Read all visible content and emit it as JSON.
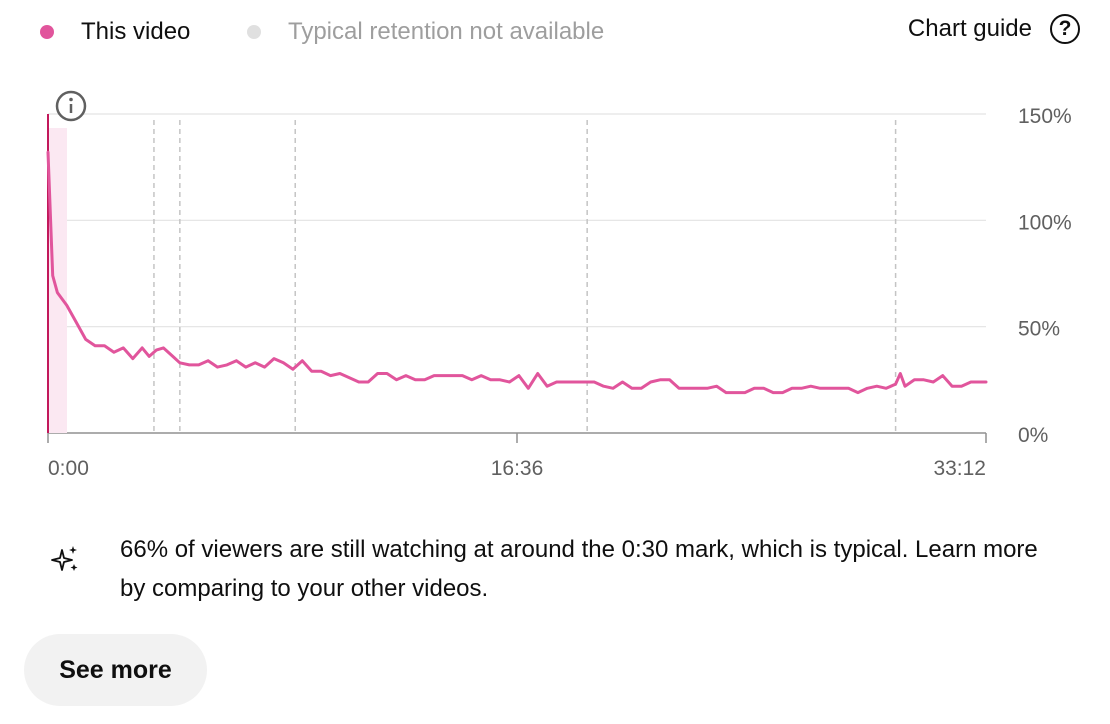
{
  "legend": [
    {
      "label": "This video",
      "color": "#e1559c"
    },
    {
      "label": "Typical retention not available",
      "color": "#e0e0e0"
    }
  ],
  "chart_guide": {
    "label": "Chart guide",
    "icon": "help-icon"
  },
  "chart_data": {
    "type": "line",
    "x_ticks": [
      "0:00",
      "16:36",
      "33:12"
    ],
    "y_ticks": [
      "150%",
      "100%",
      "50%",
      "0%"
    ],
    "ylim": [
      0,
      150
    ],
    "x_range_seconds": [
      0,
      1992
    ],
    "x_markers_seconds": [
      225,
      280,
      525,
      1145,
      1800
    ],
    "series": [
      {
        "color": "#e1559c",
        "x_seconds": [
          0,
          10,
          20,
          40,
          60,
          80,
          100,
          120,
          140,
          160,
          180,
          200,
          215,
          230,
          245,
          265,
          280,
          300,
          320,
          340,
          360,
          380,
          400,
          420,
          440,
          460,
          480,
          500,
          520,
          540,
          560,
          580,
          600,
          620,
          640,
          660,
          680,
          700,
          720,
          740,
          760,
          780,
          800,
          820,
          840,
          860,
          880,
          900,
          920,
          940,
          960,
          980,
          1000,
          1020,
          1040,
          1060,
          1080,
          1100,
          1120,
          1130,
          1140,
          1150,
          1160,
          1180,
          1200,
          1220,
          1240,
          1260,
          1280,
          1300,
          1320,
          1340,
          1360,
          1380,
          1400,
          1420,
          1440,
          1460,
          1480,
          1500,
          1520,
          1540,
          1560,
          1580,
          1600,
          1620,
          1640,
          1660,
          1680,
          1700,
          1720,
          1740,
          1760,
          1780,
          1800,
          1810,
          1820,
          1840,
          1860,
          1880,
          1900,
          1920,
          1940,
          1960,
          1980,
          1992
        ],
        "values_percent": [
          132,
          74,
          66,
          60,
          52,
          44,
          41,
          41,
          38,
          40,
          35,
          40,
          36,
          39,
          40,
          36,
          33,
          32,
          32,
          34,
          31,
          32,
          34,
          31,
          33,
          31,
          35,
          33,
          30,
          34,
          29,
          29,
          27,
          28,
          26,
          24,
          24,
          28,
          28,
          25,
          27,
          25,
          25,
          27,
          27,
          27,
          27,
          25,
          27,
          25,
          25,
          24,
          27,
          21,
          28,
          22,
          24,
          24,
          24,
          24,
          24,
          24,
          24,
          22,
          21,
          24,
          21,
          21,
          24,
          25,
          25,
          21,
          21,
          21,
          21,
          22,
          19,
          19,
          19,
          21,
          21,
          19,
          19,
          21,
          21,
          22,
          21,
          21,
          21,
          21,
          19,
          21,
          22,
          21,
          23,
          28,
          22,
          25,
          25,
          24,
          27,
          22,
          22,
          24,
          24,
          24
        ]
      }
    ]
  },
  "insight": {
    "icon": "sparkle-icon",
    "text": "66% of viewers are still watching at around the 0:30 mark, which is typical. Learn more by comparing to your other videos."
  },
  "see_more_label": "See more"
}
